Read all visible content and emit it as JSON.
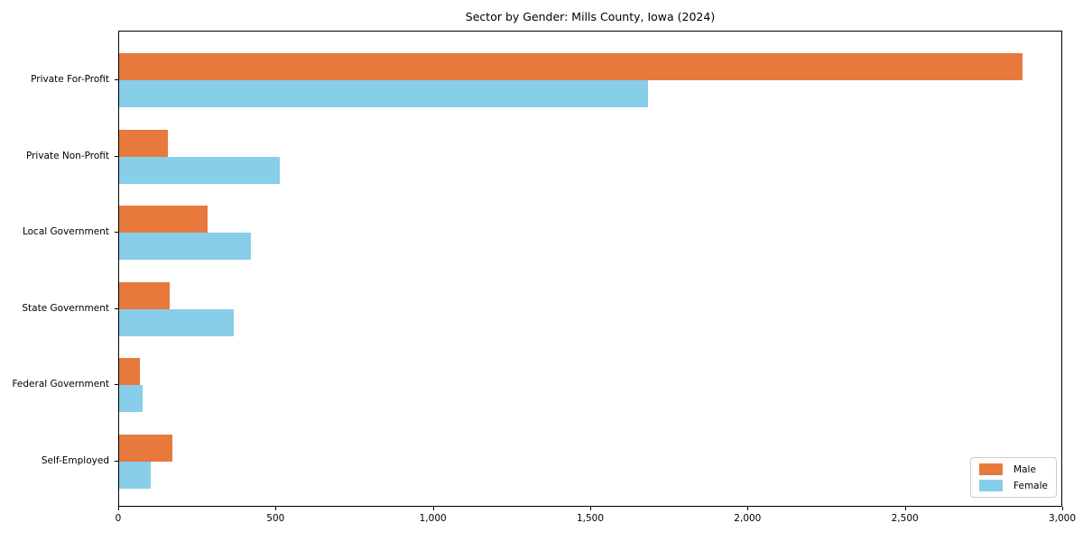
{
  "chart_data": {
    "type": "bar",
    "orientation": "horizontal",
    "title": "Sector by Gender: Mills County, Iowa (2024)",
    "categories": [
      "Private For-Profit",
      "Private Non-Profit",
      "Local Government",
      "State Government",
      "Federal Government",
      "Self-Employed"
    ],
    "series": [
      {
        "name": "Male",
        "color": "#e8793d",
        "values": [
          2870,
          155,
          280,
          160,
          65,
          170
        ]
      },
      {
        "name": "Female",
        "color": "#87ceeb",
        "values": [
          1680,
          510,
          420,
          365,
          75,
          100
        ]
      }
    ],
    "xlabel": "",
    "ylabel": "",
    "xlim": [
      0,
      3000
    ],
    "xticks": [
      0,
      500,
      1000,
      1500,
      2000,
      2500,
      3000
    ],
    "xtick_labels": [
      "0",
      "500",
      "1,000",
      "1,500",
      "2,000",
      "2,500",
      "3,000"
    ],
    "legend_position": "lower right",
    "grid": false,
    "colors": {
      "male": "#e8793d",
      "female": "#87ceeb",
      "axis": "#000000",
      "background": "#ffffff"
    }
  }
}
